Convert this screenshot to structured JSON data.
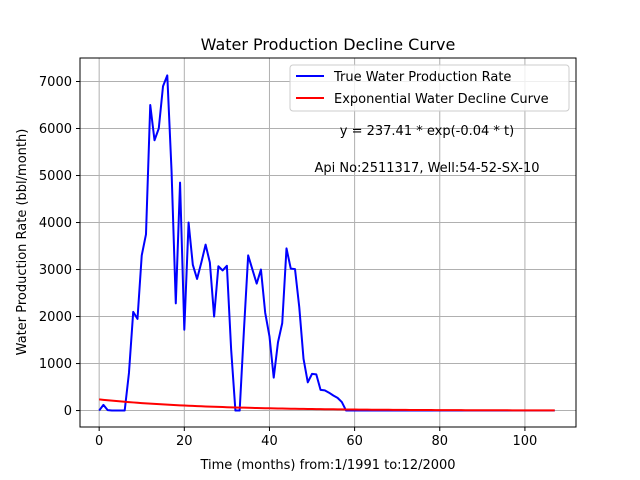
{
  "chart_data": {
    "type": "line",
    "title": "Water Production Decline Curve",
    "xlabel": "Time (months) from:1/1991 to:12/2000",
    "ylabel": "Water Production Rate (bbl/month)",
    "xlim": [
      -4.5,
      112
    ],
    "ylim": [
      -350,
      7500
    ],
    "x_ticks": [
      0,
      20,
      40,
      60,
      80,
      100
    ],
    "y_ticks": [
      0,
      1000,
      2000,
      3000,
      4000,
      5000,
      6000,
      7000
    ],
    "grid": true,
    "legend_position": "top-right",
    "annotations": [
      "y = 237.41 * exp(-0.04 * t)",
      "Api No:2511317, Well:54-52-SX-10"
    ],
    "series": [
      {
        "name": "True Water Production Rate",
        "color": "#0000ff",
        "points": [
          [
            0,
            0
          ],
          [
            1,
            120
          ],
          [
            2,
            10
          ],
          [
            3,
            0
          ],
          [
            4,
            0
          ],
          [
            5,
            0
          ],
          [
            6,
            0
          ],
          [
            7,
            800
          ],
          [
            8,
            2100
          ],
          [
            9,
            1950
          ],
          [
            10,
            3300
          ],
          [
            11,
            3750
          ],
          [
            12,
            6500
          ],
          [
            13,
            5750
          ],
          [
            14,
            6000
          ],
          [
            15,
            6900
          ],
          [
            16,
            7130
          ],
          [
            17,
            5100
          ],
          [
            18,
            2280
          ],
          [
            19,
            4850
          ],
          [
            20,
            1720
          ],
          [
            21,
            4000
          ],
          [
            22,
            3100
          ],
          [
            23,
            2800
          ],
          [
            24,
            3150
          ],
          [
            25,
            3530
          ],
          [
            26,
            3150
          ],
          [
            27,
            2000
          ],
          [
            28,
            3070
          ],
          [
            29,
            2980
          ],
          [
            30,
            3080
          ],
          [
            31,
            1300
          ],
          [
            32,
            0
          ],
          [
            33,
            0
          ],
          [
            34,
            1700
          ],
          [
            35,
            3300
          ],
          [
            36,
            3000
          ],
          [
            37,
            2700
          ],
          [
            38,
            3000
          ],
          [
            39,
            2080
          ],
          [
            40,
            1580
          ],
          [
            41,
            700
          ],
          [
            42,
            1450
          ],
          [
            43,
            1860
          ],
          [
            44,
            3450
          ],
          [
            45,
            3020
          ],
          [
            46,
            3010
          ],
          [
            47,
            2200
          ],
          [
            48,
            1100
          ],
          [
            49,
            600
          ],
          [
            50,
            780
          ],
          [
            51,
            770
          ],
          [
            52,
            440
          ],
          [
            53,
            430
          ],
          [
            54,
            380
          ],
          [
            55,
            320
          ],
          [
            56,
            270
          ],
          [
            57,
            180
          ],
          [
            58,
            0
          ],
          [
            60,
            0
          ],
          [
            80,
            0
          ],
          [
            100,
            0
          ],
          [
            107,
            0
          ]
        ]
      },
      {
        "name": "Exponential Water Decline Curve",
        "color": "#ff0000",
        "function": {
          "a": 237.41,
          "b": 0.04
        },
        "x_range": [
          0,
          107
        ]
      }
    ]
  }
}
